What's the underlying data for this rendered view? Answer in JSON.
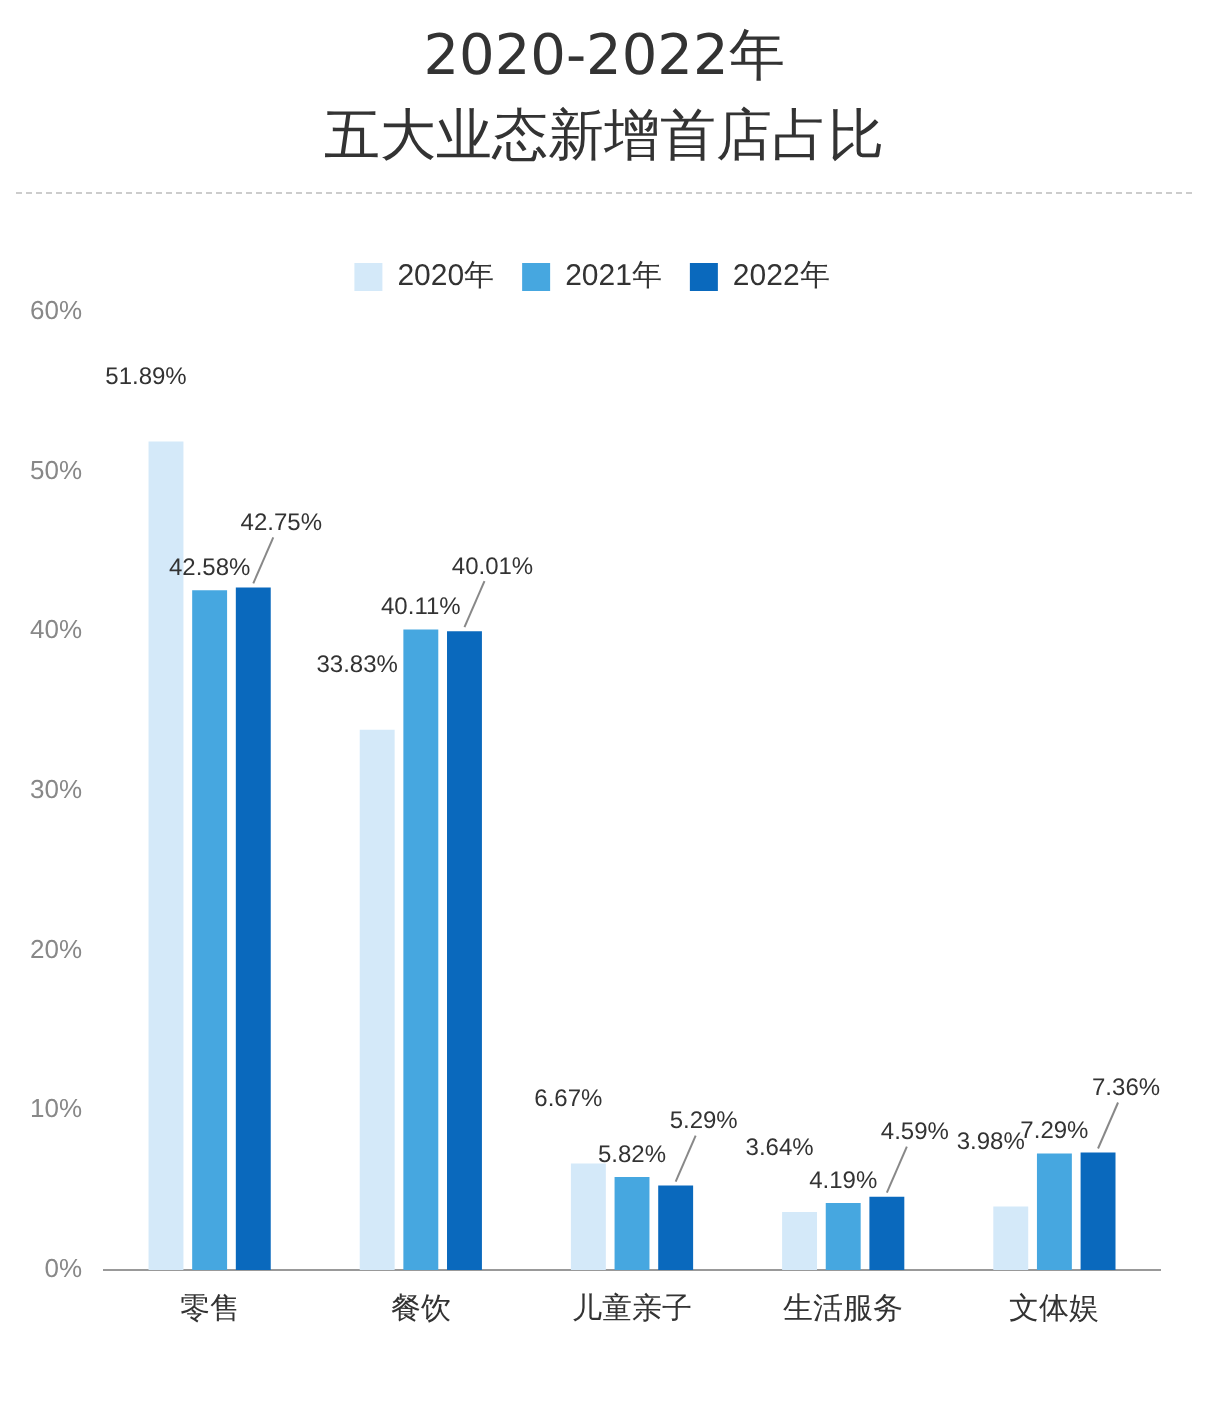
{
  "chart_data": {
    "type": "bar",
    "title": "2020-2022年",
    "subtitle": "五大业态新增首店占比",
    "categories": [
      "零售",
      "餐饮",
      "儿童亲子",
      "生活服务",
      "文体娱"
    ],
    "series": [
      {
        "name": "2020年",
        "color": "#d4e9f9",
        "values": [
          51.89,
          33.83,
          6.67,
          3.64,
          3.98
        ],
        "value_labels": [
          "51.89%",
          "33.83%",
          "6.67%",
          "3.64%",
          "3.98%"
        ]
      },
      {
        "name": "2021年",
        "color": "#46a7e0",
        "values": [
          42.58,
          40.11,
          5.82,
          4.19,
          7.29
        ],
        "value_labels": [
          "42.58%",
          "40.11%",
          "5.82%",
          "4.19%",
          "7.29%"
        ]
      },
      {
        "name": "2022年",
        "color": "#0a69bd",
        "values": [
          42.75,
          40.01,
          5.29,
          4.59,
          7.36
        ],
        "value_labels": [
          "42.75%",
          "40.01%",
          "5.29%",
          "4.59%",
          "7.36%"
        ]
      }
    ],
    "ylim": [
      0,
      60
    ],
    "yticks": [
      {
        "value": 0,
        "label": "0%"
      },
      {
        "value": 10,
        "label": "10%"
      },
      {
        "value": 20,
        "label": "20%"
      },
      {
        "value": 30,
        "label": "30%"
      },
      {
        "value": 40,
        "label": "40%"
      },
      {
        "value": 50,
        "label": "50%"
      },
      {
        "value": 60,
        "label": "60%"
      }
    ],
    "grid": false,
    "legend": "top"
  }
}
